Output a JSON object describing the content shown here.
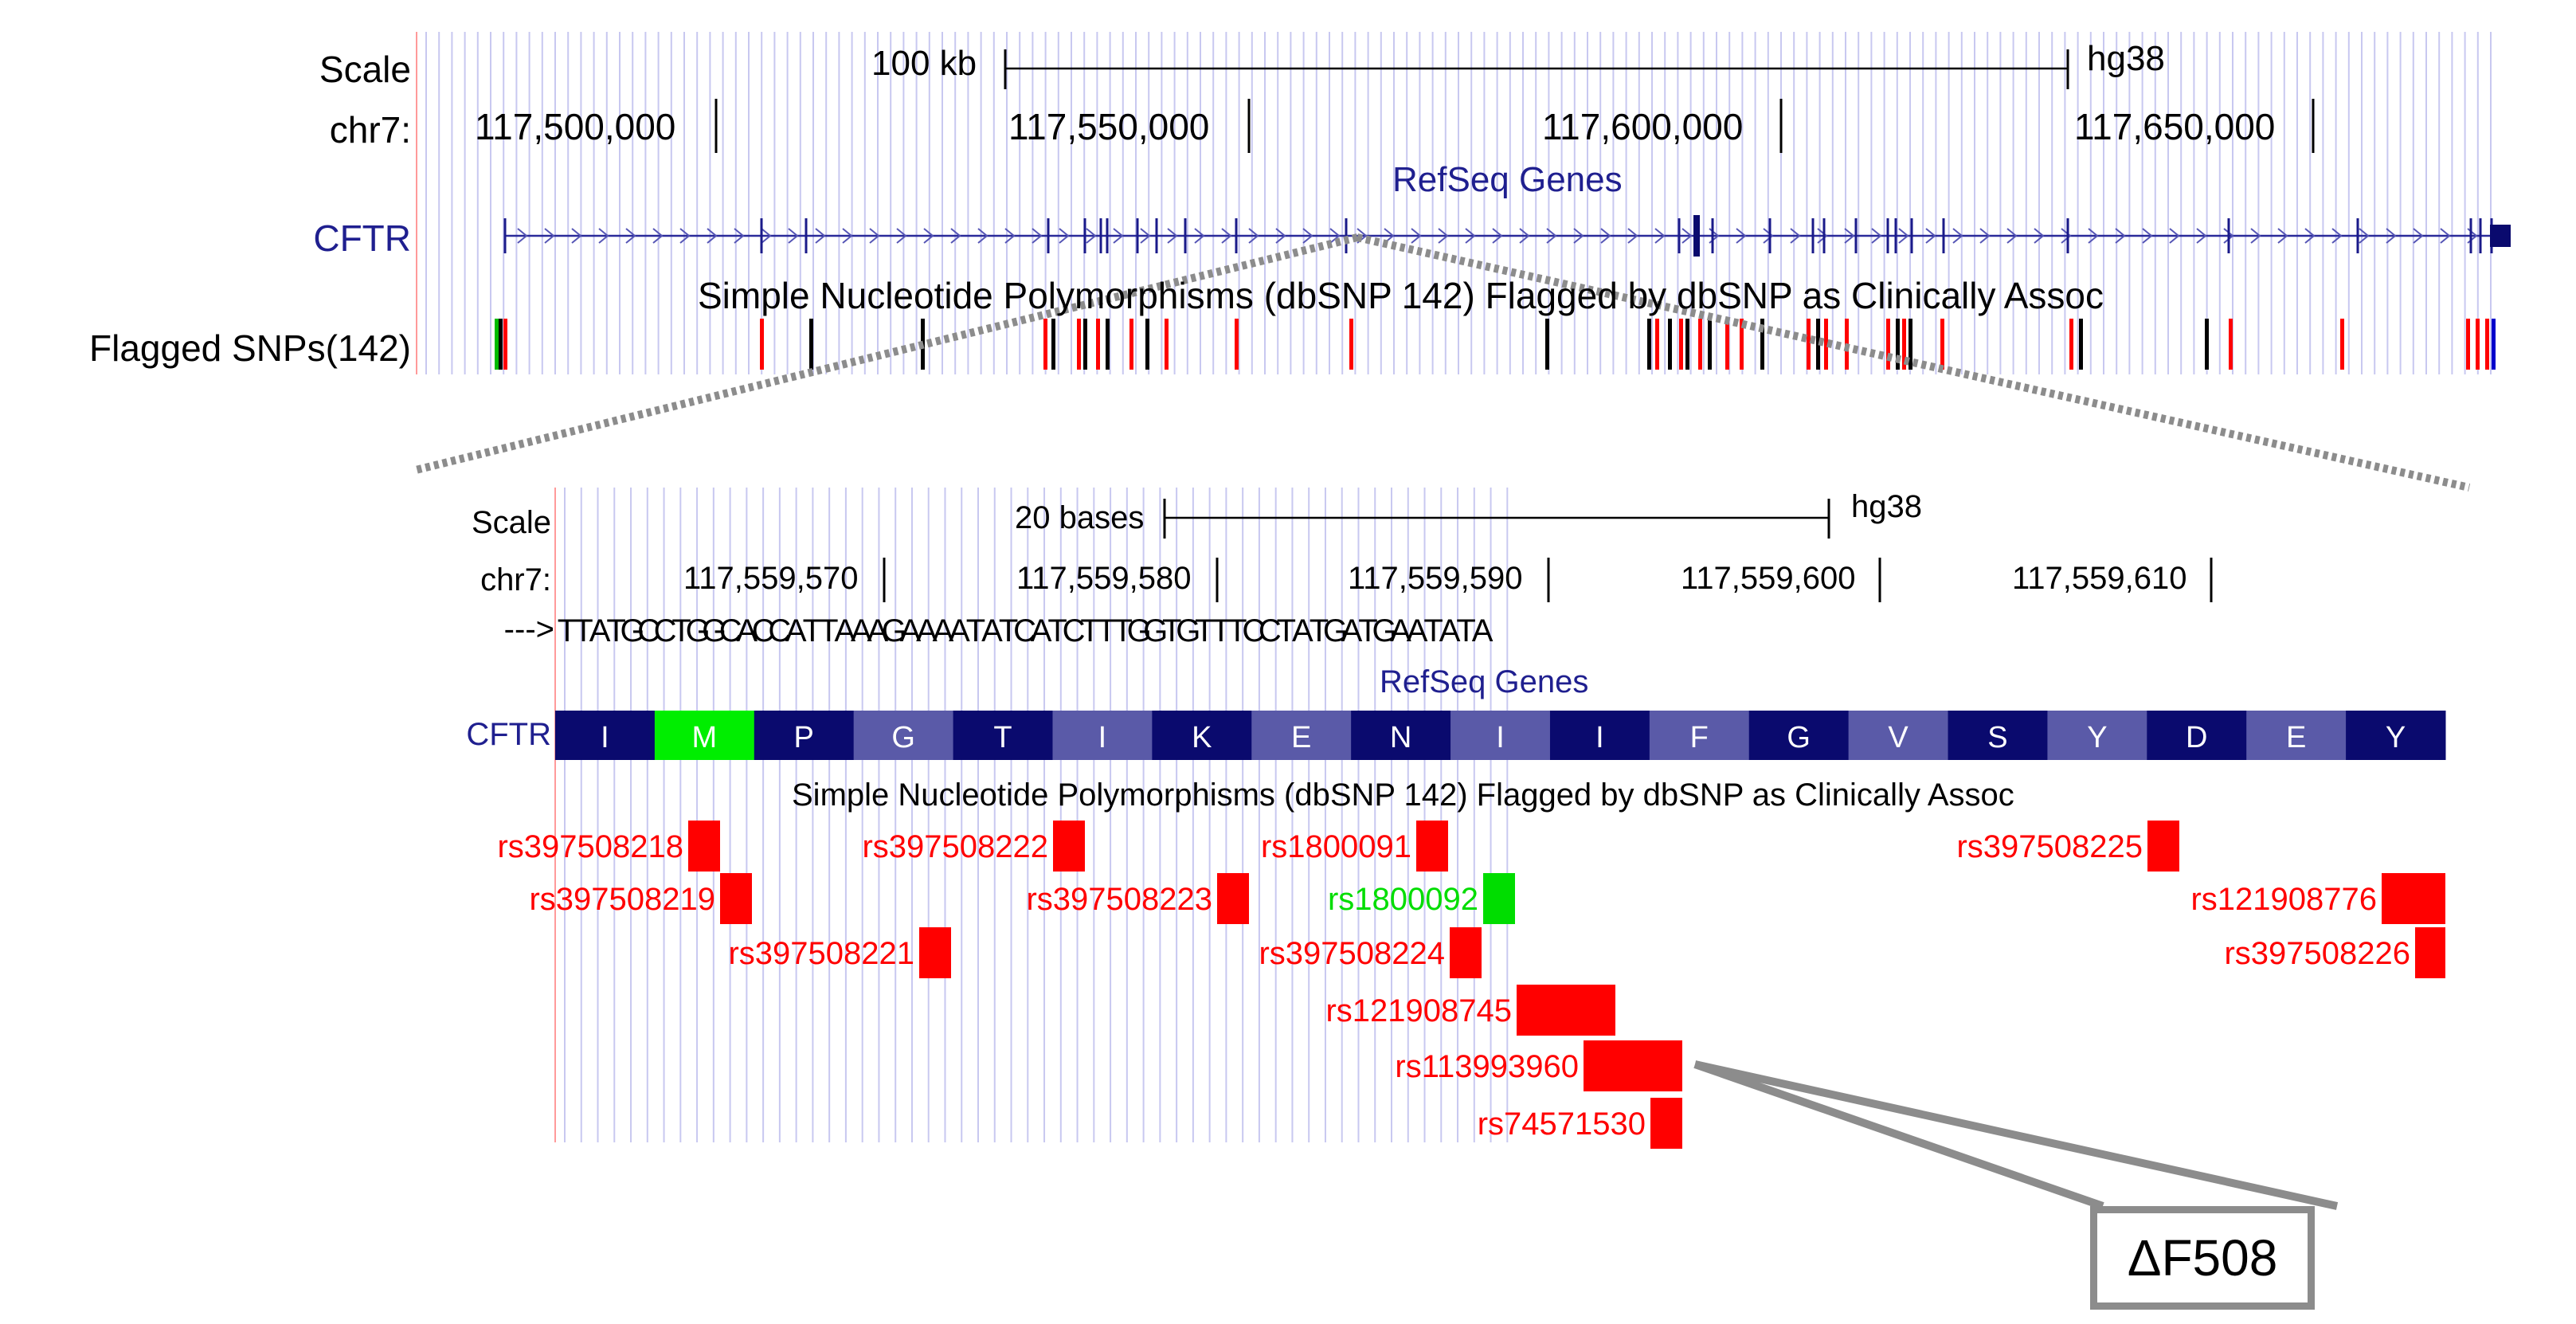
{
  "top_panel": {
    "scale_label": "Scale",
    "scale_bar_text": "100 kb",
    "assembly": "hg38",
    "chrom_label": "chr7:",
    "positions": [
      "117,500,000",
      "117,550,000",
      "117,600,000",
      "117,650,000"
    ],
    "genes_track_title": "RefSeq Genes",
    "gene_label": "CFTR",
    "snp_track_title": "Simple Nucleotide Polymorphisms (dbSNP 142) Flagged by dbSNP as Clinically Assoc",
    "snp_track_label": "Flagged SNPs(142)"
  },
  "bottom_panel": {
    "scale_label": "Scale",
    "scale_bar_text": "20 bases",
    "assembly": "hg38",
    "chrom_label": "chr7:",
    "positions": [
      "117,559,570",
      "117,559,580",
      "117,559,590",
      "117,559,600",
      "117,559,610"
    ],
    "strand_arrow": "--->",
    "sequence": "TTATGCCTGGCACCATTAAAGAAAATATCATCTTTGGTGTTTCCTATGATGAATATA",
    "genes_track_title": "RefSeq Genes",
    "gene_label": "CFTR",
    "amino_acids": [
      "I",
      "M",
      "P",
      "G",
      "T",
      "I",
      "K",
      "E",
      "N",
      "I",
      "I",
      "F",
      "G",
      "V",
      "S",
      "Y",
      "D",
      "E",
      "Y"
    ],
    "snp_track_title": "Simple Nucleotide Polymorphisms (dbSNP 142) Flagged by dbSNP as Clinically Assoc",
    "snps": [
      {
        "id": "rs397508218",
        "color": "#ff0000"
      },
      {
        "id": "rs397508219",
        "color": "#ff0000"
      },
      {
        "id": "rs397508221",
        "color": "#ff0000"
      },
      {
        "id": "rs397508222",
        "color": "#ff0000"
      },
      {
        "id": "rs397508223",
        "color": "#ff0000"
      },
      {
        "id": "rs1800091",
        "color": "#ff0000"
      },
      {
        "id": "rs1800092",
        "color": "#00dd00"
      },
      {
        "id": "rs397508224",
        "color": "#ff0000"
      },
      {
        "id": "rs121908745",
        "color": "#ff0000"
      },
      {
        "id": "rs113993960",
        "color": "#ff0000"
      },
      {
        "id": "rs74571530",
        "color": "#ff0000"
      },
      {
        "id": "rs397508225",
        "color": "#ff0000"
      },
      {
        "id": "rs121908776",
        "color": "#ff0000"
      },
      {
        "id": "rs397508226",
        "color": "#ff0000"
      }
    ]
  },
  "callout": {
    "text": "ΔF508"
  },
  "colors": {
    "gene_dark": "#0a0a6e",
    "gene_light": "#5a5aa8",
    "start_codon": "#00ee00",
    "grid_line": "#c8c8f0",
    "snp_red": "#ff0000",
    "snp_black": "#000000",
    "zoom_line": "#8c8c8c"
  }
}
